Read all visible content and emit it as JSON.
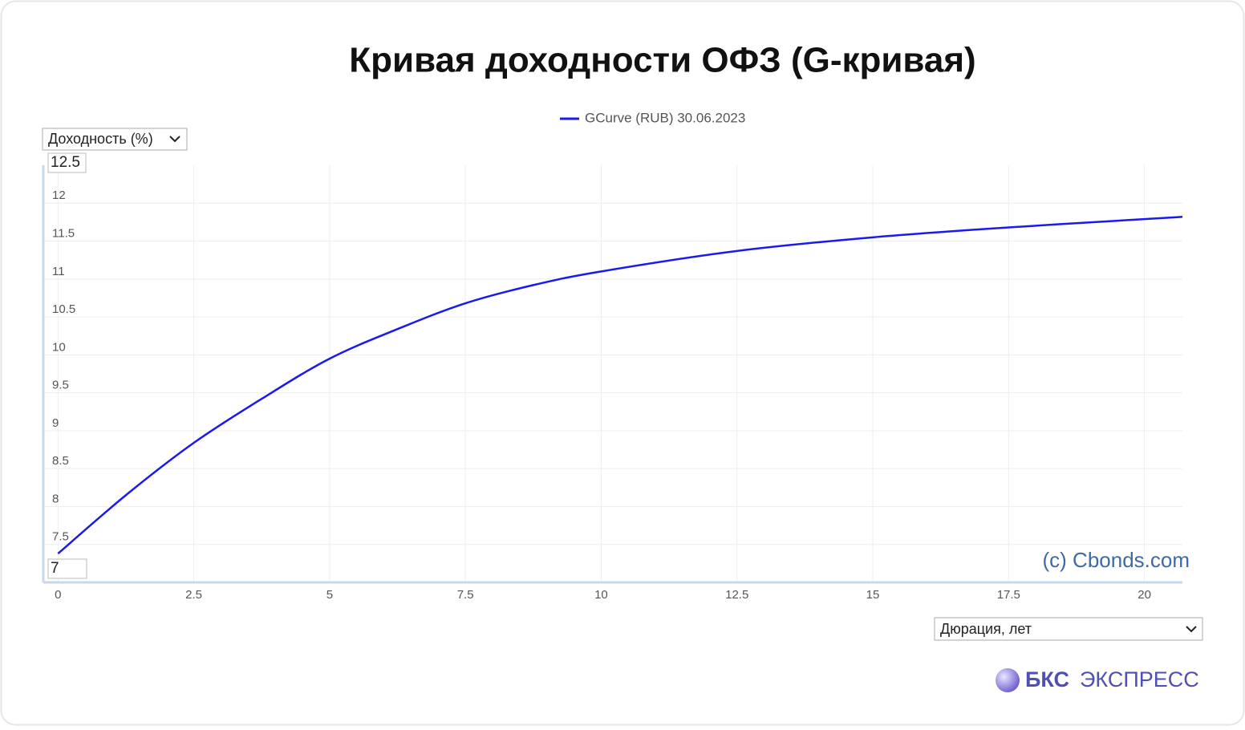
{
  "chart_data": {
    "type": "line",
    "title": "Кривая доходности ОФЗ (G-кривая)",
    "y_selector": "Доходность (%)",
    "x_selector": "Дюрация, лет",
    "watermark": "(c) Cbonds.com",
    "logo": {
      "bold": "БКС",
      "rest": "ЭКСПРЕСС"
    },
    "x": [
      0,
      1.25,
      2.5,
      3.75,
      5,
      6.25,
      7.5,
      8.75,
      10,
      12.5,
      15,
      17.5,
      20,
      20.7
    ],
    "series": [
      {
        "name": "GCurve (RUB) 30.06.2023",
        "color": "#1a1aee",
        "values": [
          7.38,
          8.15,
          8.84,
          9.42,
          9.95,
          10.34,
          10.68,
          10.92,
          11.1,
          11.37,
          11.55,
          11.68,
          11.79,
          11.82
        ]
      }
    ],
    "xlim": [
      -0.27,
      20.7
    ],
    "xticks": [
      0,
      2.5,
      5,
      7.5,
      10,
      12.5,
      15,
      17.5,
      20
    ],
    "ylim": [
      7,
      12.5
    ],
    "yticks": [
      7.5,
      8,
      8.5,
      9,
      9.5,
      10,
      10.5,
      11,
      11.5,
      12
    ],
    "grid": true
  }
}
